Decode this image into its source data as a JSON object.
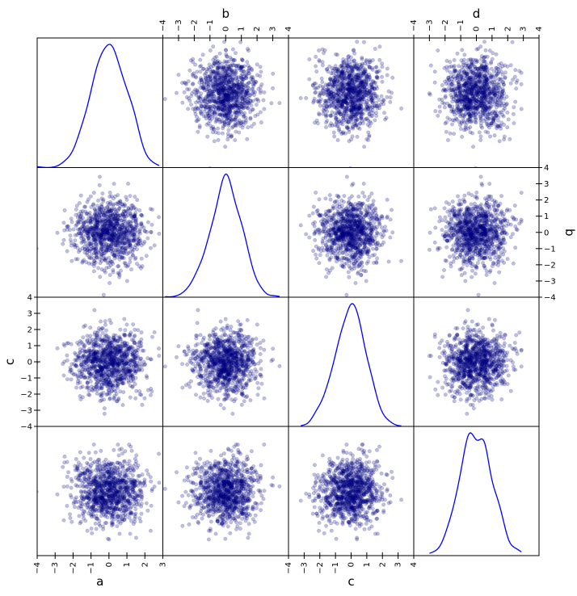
{
  "chart_data": {
    "type": "scatter-matrix",
    "variables": [
      "a",
      "b",
      "c",
      "d"
    ],
    "n_points": 1000,
    "distribution": "standard normal (approx.)",
    "point_color": "#000080",
    "point_alpha": 0.25,
    "kde_color": "#0000ff",
    "diagonal": "kde",
    "ranges": {
      "a": [
        -4,
        3
      ],
      "b": [
        -4,
        4
      ],
      "c": [
        -4,
        4
      ],
      "d": [
        -4,
        4
      ]
    },
    "tick_labels": {
      "a": [
        "−4",
        "−3",
        "−2",
        "−1",
        "0",
        "1",
        "2",
        "3"
      ],
      "b": [
        "−4",
        "−3",
        "−2",
        "−1",
        "0",
        "1",
        "2",
        "3",
        "4"
      ],
      "c": [
        "−4",
        "−3",
        "−2",
        "−1",
        "0",
        "1",
        "2",
        "3",
        "4"
      ],
      "d": [
        "−4",
        "−3",
        "−2",
        "−1",
        "0",
        "1",
        "2",
        "3",
        "4"
      ]
    },
    "axis_labels": {
      "top": [
        "",
        "b",
        "",
        "d"
      ],
      "bottom": [
        "a",
        "",
        "c",
        ""
      ],
      "left": [
        "",
        "",
        "c",
        ""
      ],
      "right": [
        "",
        "b",
        "",
        ""
      ]
    },
    "grid": false,
    "legend": "none"
  }
}
